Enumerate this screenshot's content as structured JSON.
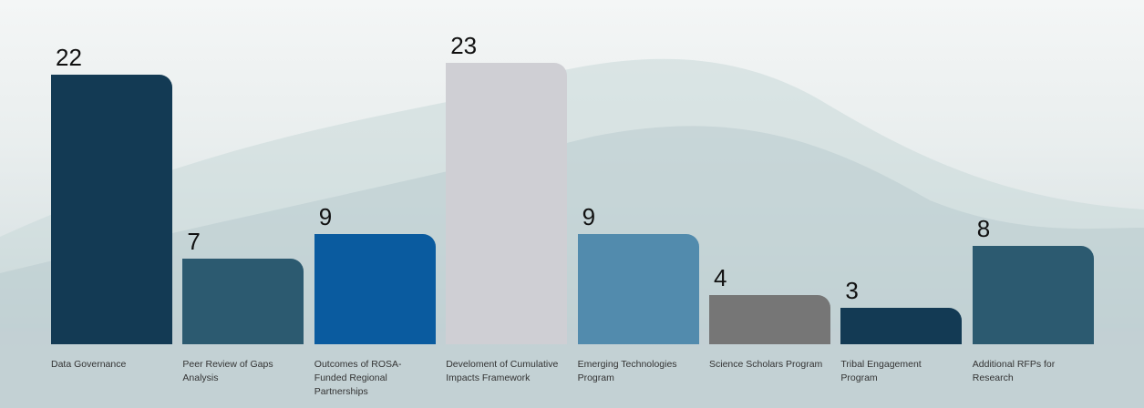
{
  "chart_data": {
    "type": "bar",
    "categories": [
      "Data Governance",
      "Peer Review of Gaps Analysis",
      "Outcomes of ROSA-Funded Regional Partnerships",
      "Develoment of Cumulative Impacts Framework",
      "Emerging Technologies Program",
      "Science Scholars Program",
      "Tribal Engagement Program",
      "Additional RFPs for Research"
    ],
    "values": [
      22,
      7,
      9,
      23,
      9,
      4,
      3,
      8
    ],
    "colors": [
      "#133a54",
      "#2c5a70",
      "#0a5b9f",
      "#cfcfd4",
      "#528bad",
      "#767676",
      "#133a54",
      "#2c5a70"
    ]
  }
}
